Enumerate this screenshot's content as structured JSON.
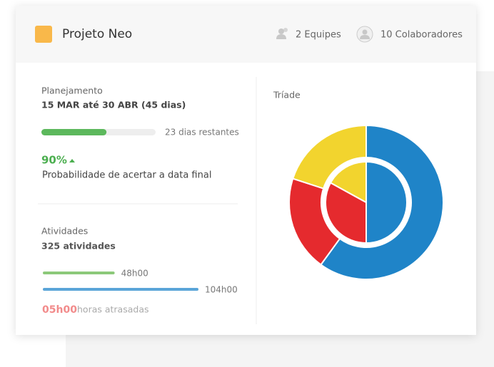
{
  "header": {
    "title": "Projeto Neo",
    "teams": "2 Equipes",
    "members": "10 Colaboradores"
  },
  "planning": {
    "label": "Planejamento",
    "period": "15 MAR até 30 ABR (45 dias)",
    "progress": 57,
    "progress_color": "#5cb85c",
    "remaining": "23 dias restantes",
    "probability": "90%",
    "probability_text": "Probabilidade de acertar a data final"
  },
  "activities": {
    "label": "Atividades",
    "count": "325 atividades",
    "bars": [
      {
        "value": 48,
        "label": "48h00",
        "color": "#8cc97a"
      },
      {
        "value": 104,
        "label": "104h00",
        "color": "#5aa5d8"
      }
    ],
    "delay": "05h00",
    "delay_text": "horas atrasadas"
  },
  "triad": {
    "title": "Tríade",
    "outer": [
      {
        "value": 60,
        "color": "#1f84c8"
      },
      {
        "value": 20,
        "color": "#e52a2e"
      },
      {
        "value": 20,
        "color": "#f2d42e"
      }
    ],
    "inner": [
      {
        "value": 50,
        "color": "#1f84c8"
      },
      {
        "value": 33,
        "color": "#e52a2e"
      },
      {
        "value": 17,
        "color": "#f2d42e"
      }
    ]
  }
}
